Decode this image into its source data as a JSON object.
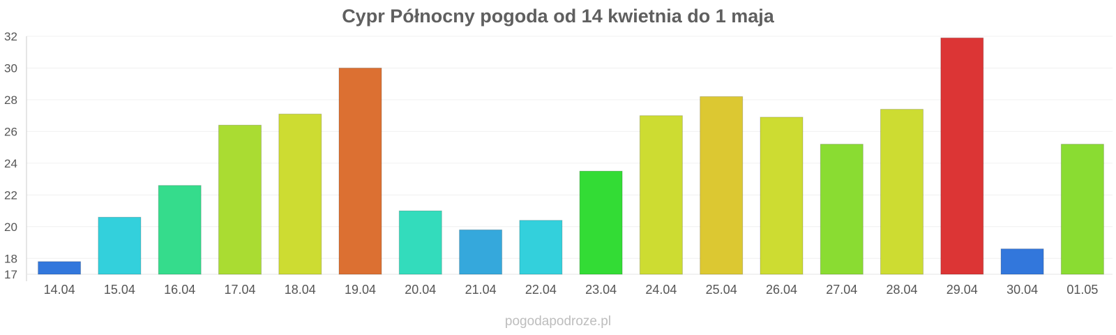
{
  "chart_data": {
    "type": "bar",
    "title": "Cypr Północny pogoda od 14 kwietnia do 1 maja",
    "xlabel": "",
    "ylabel": "",
    "ylim": [
      17,
      32
    ],
    "yticks": [
      "17",
      "18",
      "20",
      "22",
      "24",
      "26",
      "28",
      "30",
      "32"
    ],
    "grid": true,
    "categories": [
      "14.04",
      "15.04",
      "16.04",
      "17.04",
      "18.04",
      "19.04",
      "20.04",
      "21.04",
      "22.04",
      "23.04",
      "24.04",
      "25.04",
      "26.04",
      "27.04",
      "28.04",
      "29.04",
      "30.04",
      "01.05"
    ],
    "values": [
      17.8,
      20.6,
      22.6,
      26.4,
      27.1,
      30.0,
      21.0,
      19.8,
      20.4,
      23.5,
      27.0,
      28.2,
      26.9,
      25.2,
      27.4,
      31.9,
      18.6,
      25.2
    ],
    "colors": [
      "#3277dc",
      "#33d0dc",
      "#35dc8c",
      "#aadc32",
      "#cddc32",
      "#dc7032",
      "#33dcbc",
      "#35a8dc",
      "#33d0dc",
      "#33dc35",
      "#cddc32",
      "#dcc832",
      "#cddc32",
      "#8adc32",
      "#cddc32",
      "#dc3535",
      "#3277dc",
      "#8adc32"
    ]
  },
  "watermark": "pogodapodroze.pl"
}
